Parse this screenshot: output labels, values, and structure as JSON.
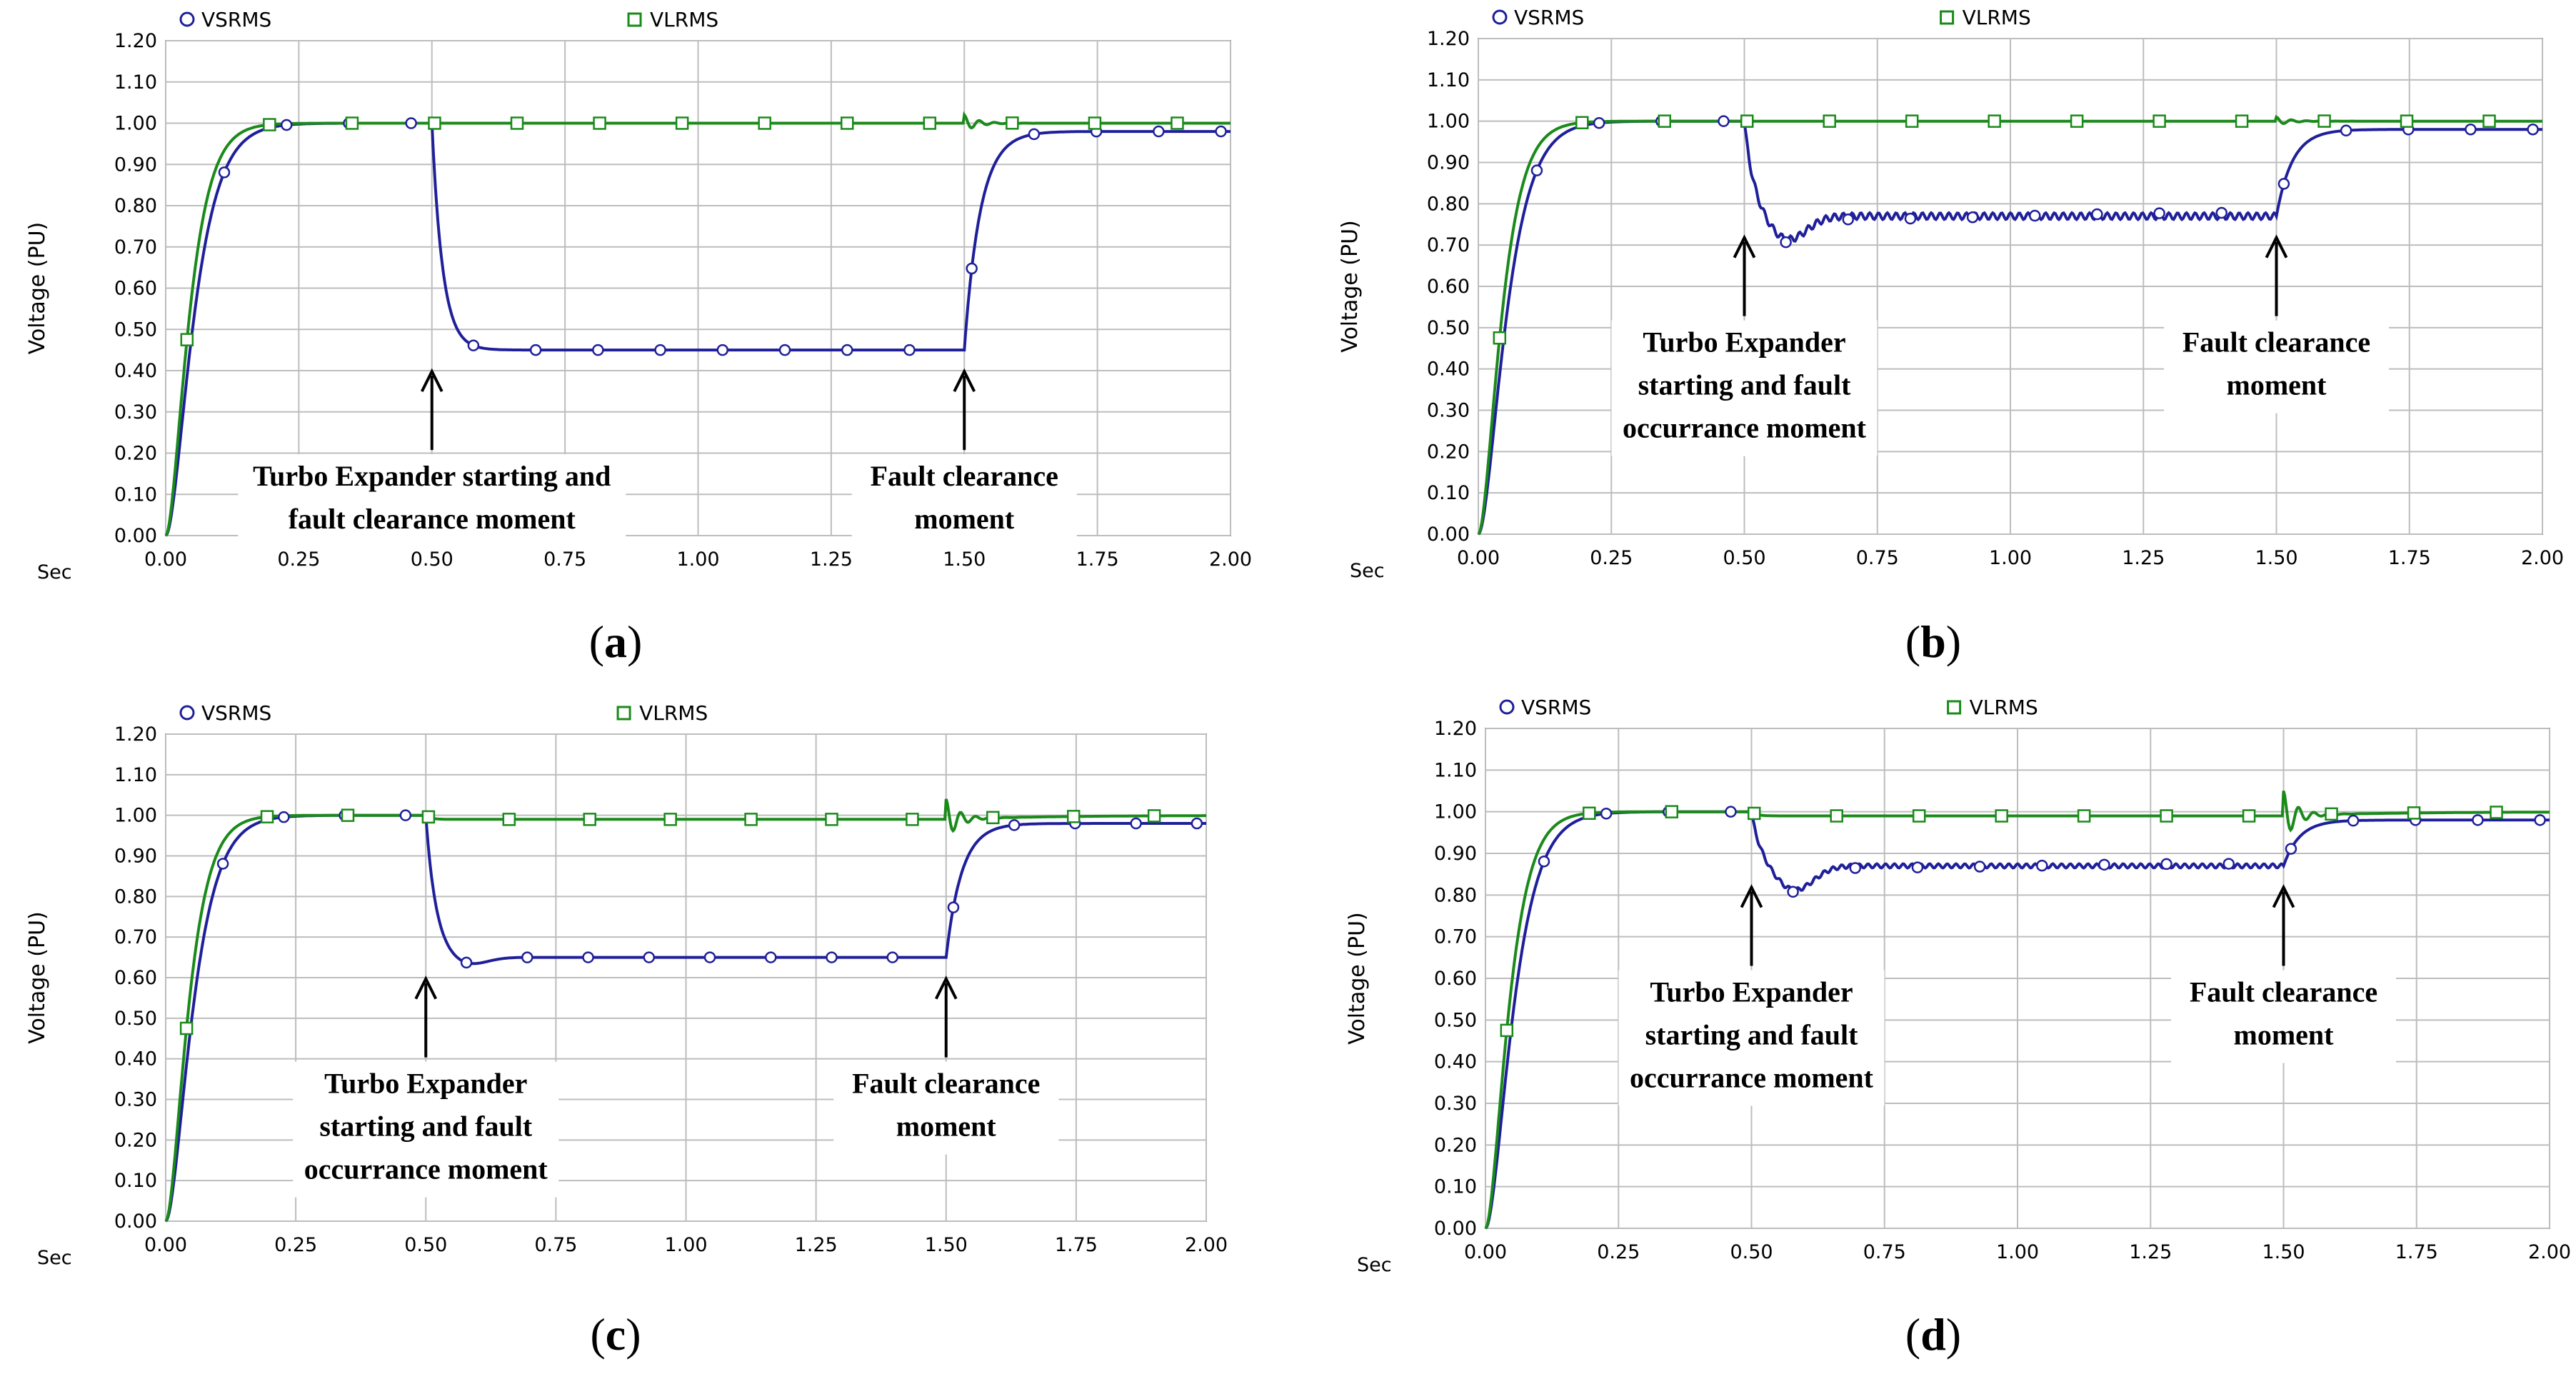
{
  "figure": {
    "y_axis_label": "Voltage (PU)",
    "x_axis_unit": "Sec"
  },
  "chart_data": [
    {
      "type": "line",
      "panel": "(a)",
      "caption_letter": "a",
      "xlim": [
        0,
        2.0
      ],
      "ylim": [
        0,
        1.2
      ],
      "xticks": [
        "0.00",
        "0.25",
        "0.50",
        "0.75",
        "1.00",
        "1.25",
        "1.50",
        "1.75",
        "2.00"
      ],
      "yticks": [
        "0.00",
        "0.10",
        "0.20",
        "0.30",
        "0.40",
        "0.50",
        "0.60",
        "0.70",
        "0.80",
        "0.90",
        "1.00",
        "1.10",
        "1.20"
      ],
      "legend": [
        "VSRMS",
        "VLRMS"
      ],
      "colors": {
        "VSRMS": "#1f1f9a",
        "VLRMS": "#1a8a1a"
      },
      "series": [
        {
          "name": "VSRMS",
          "params": {
            "dip": 0.45,
            "undershoot": 0,
            "osc": 0
          }
        },
        {
          "name": "VLRMS",
          "params": {
            "level": 1.0,
            "spike": 0.02
          }
        }
      ],
      "annotations": [
        {
          "x": 0.5,
          "lines": [
            "Turbo Expander starting and",
            "fault clearance moment"
          ]
        },
        {
          "x": 1.5,
          "lines": [
            "Fault clearance",
            "moment"
          ]
        }
      ]
    },
    {
      "type": "line",
      "panel": "(b)",
      "caption_letter": "b",
      "xlim": [
        0,
        2.0
      ],
      "ylim": [
        0,
        1.2
      ],
      "xticks": [
        "0.00",
        "0.25",
        "0.50",
        "0.75",
        "1.00",
        "1.25",
        "1.50",
        "1.75",
        "2.00"
      ],
      "yticks": [
        "0.00",
        "0.10",
        "0.20",
        "0.30",
        "0.40",
        "0.50",
        "0.60",
        "0.70",
        "0.80",
        "0.90",
        "1.00",
        "1.10",
        "1.20"
      ],
      "legend": [
        "VSRMS",
        "VLRMS"
      ],
      "colors": {
        "VSRMS": "#1f1f9a",
        "VLRMS": "#1a8a1a"
      },
      "series": [
        {
          "name": "VSRMS",
          "params": {
            "dip": 0.77,
            "undershoot": 0.06,
            "osc": 0.008
          }
        },
        {
          "name": "VLRMS",
          "params": {
            "level": 1.0,
            "spike": 0.01
          }
        }
      ],
      "annotations": [
        {
          "x": 0.5,
          "lines": [
            "Turbo Expander",
            "starting and fault",
            "occurrance moment"
          ]
        },
        {
          "x": 1.5,
          "lines": [
            "Fault clearance",
            "moment"
          ]
        }
      ]
    },
    {
      "type": "line",
      "panel": "(c)",
      "caption_letter": "c",
      "xlim": [
        0,
        2.0
      ],
      "ylim": [
        0,
        1.2
      ],
      "xticks": [
        "0.00",
        "0.25",
        "0.50",
        "0.75",
        "1.00",
        "1.25",
        "1.50",
        "1.75",
        "2.00"
      ],
      "yticks": [
        "0.00",
        "0.10",
        "0.20",
        "0.30",
        "0.40",
        "0.50",
        "0.60",
        "0.70",
        "0.80",
        "0.90",
        "1.00",
        "1.10",
        "1.20"
      ],
      "legend": [
        "VSRMS",
        "VLRMS"
      ],
      "colors": {
        "VSRMS": "#1f1f9a",
        "VLRMS": "#1a8a1a"
      },
      "series": [
        {
          "name": "VSRMS",
          "params": {
            "dip": 0.65,
            "undershoot": 0.02,
            "osc": 0
          }
        },
        {
          "name": "VLRMS",
          "params": {
            "level": 0.99,
            "spike": 0.05
          }
        }
      ],
      "annotations": [
        {
          "x": 0.5,
          "lines": [
            "Turbo Expander",
            "starting and fault",
            "occurrance moment"
          ]
        },
        {
          "x": 1.5,
          "lines": [
            "Fault clearance",
            "moment"
          ]
        }
      ]
    },
    {
      "type": "line",
      "panel": "(d)",
      "caption_letter": "d",
      "xlim": [
        0,
        2.0
      ],
      "ylim": [
        0,
        1.2
      ],
      "xticks": [
        "0.00",
        "0.25",
        "0.50",
        "0.75",
        "1.00",
        "1.25",
        "1.50",
        "1.75",
        "2.00"
      ],
      "yticks": [
        "0.00",
        "0.10",
        "0.20",
        "0.30",
        "0.40",
        "0.50",
        "0.60",
        "0.70",
        "0.80",
        "0.90",
        "1.00",
        "1.10",
        "1.20"
      ],
      "legend": [
        "VSRMS",
        "VLRMS"
      ],
      "colors": {
        "VSRMS": "#1f1f9a",
        "VLRMS": "#1a8a1a"
      },
      "series": [
        {
          "name": "VSRMS",
          "params": {
            "dip": 0.87,
            "undershoot": 0.06,
            "osc": 0.005
          }
        },
        {
          "name": "VLRMS",
          "params": {
            "level": 0.99,
            "spike": 0.06
          }
        }
      ],
      "annotations": [
        {
          "x": 0.5,
          "lines": [
            "Turbo Expander",
            "starting and fault",
            "occurrance moment"
          ]
        },
        {
          "x": 1.5,
          "lines": [
            "Fault clearance",
            "moment"
          ]
        }
      ]
    }
  ]
}
